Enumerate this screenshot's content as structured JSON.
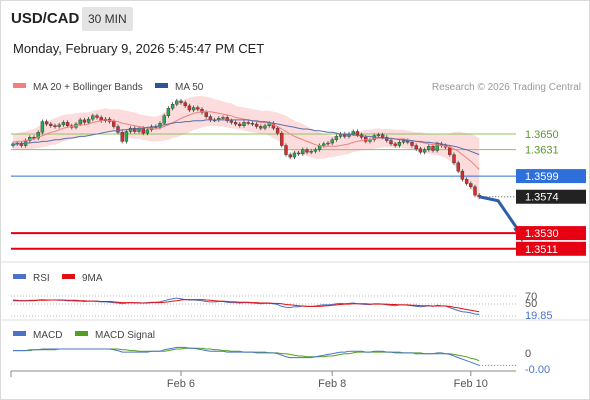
{
  "header": {
    "symbol": "USD/CAD",
    "timeframe": "30 MIN",
    "datetime": "Monday, February 9, 2026 5:45:47 PM CET"
  },
  "legend": {
    "items": [
      {
        "label": "MA 20 + Bollinger Bands",
        "color": "#f08080"
      },
      {
        "label": "MA 50",
        "color": "#2f5597"
      }
    ],
    "credit": "Research © 2026 Trading Central"
  },
  "chart_data": {
    "type": "candlestick",
    "y_range": [
      1.3495,
      1.3725
    ],
    "x_ticks": [
      {
        "label": "Feb 6",
        "index": 40
      },
      {
        "label": "Feb 8",
        "index": 76
      },
      {
        "label": "Feb 10",
        "index": 109
      }
    ],
    "close": [
      1.3638,
      1.3639,
      1.3636,
      1.3642,
      1.3646,
      1.3645,
      1.3652,
      1.3665,
      1.3662,
      1.366,
      1.3659,
      1.3661,
      1.3664,
      1.366,
      1.3658,
      1.3662,
      1.3667,
      1.3664,
      1.3668,
      1.3672,
      1.367,
      1.3666,
      1.3668,
      1.3665,
      1.3659,
      1.3652,
      1.3641,
      1.3653,
      1.3657,
      1.3653,
      1.3657,
      1.3651,
      1.3655,
      1.3659,
      1.3658,
      1.3663,
      1.3672,
      1.3681,
      1.3686,
      1.369,
      1.3688,
      1.3684,
      1.3679,
      1.3682,
      1.368,
      1.3676,
      1.3671,
      1.3667,
      1.3667,
      1.3669,
      1.367,
      1.3666,
      1.3664,
      1.3662,
      1.366,
      1.3664,
      1.3663,
      1.3662,
      1.3659,
      1.3657,
      1.366,
      1.3663,
      1.3657,
      1.3651,
      1.3636,
      1.3625,
      1.3622,
      1.3627,
      1.3626,
      1.3631,
      1.3628,
      1.3629,
      1.3631,
      1.3636,
      1.3638,
      1.3639,
      1.3643,
      1.3647,
      1.365,
      1.3647,
      1.365,
      1.3653,
      1.3649,
      1.3646,
      1.3641,
      1.3643,
      1.3648,
      1.3649,
      1.3646,
      1.3642,
      1.3638,
      1.3636,
      1.364,
      1.3642,
      1.364,
      1.3636,
      1.3632,
      1.3628,
      1.3631,
      1.3635,
      1.363,
      1.3638,
      1.3636,
      1.3634,
      1.3625,
      1.3615,
      1.3605,
      1.3595,
      1.359,
      1.3586,
      1.3576,
      1.3574
    ],
    "ma20": [
      1.364,
      1.3641,
      1.3641,
      1.3642,
      1.3643,
      1.3644,
      1.3646,
      1.3648,
      1.365,
      1.3652,
      1.3653,
      1.3655,
      1.3657,
      1.3658,
      1.3659,
      1.366,
      1.3661,
      1.3661,
      1.3662,
      1.3664,
      1.3665,
      1.3666,
      1.3667,
      1.3666,
      1.3666,
      1.3665,
      1.3663,
      1.3662,
      1.3661,
      1.366,
      1.3659,
      1.3658,
      1.3657,
      1.3656,
      1.3656,
      1.3657,
      1.3659,
      1.3661,
      1.3664,
      1.3666,
      1.3669,
      1.3671,
      1.3673,
      1.3675,
      1.3676,
      1.3677,
      1.3677,
      1.3677,
      1.3676,
      1.3675,
      1.3674,
      1.3673,
      1.3672,
      1.367,
      1.3669,
      1.3668,
      1.3667,
      1.3666,
      1.3665,
      1.3664,
      1.3664,
      1.3663,
      1.3661,
      1.3659,
      1.3656,
      1.3653,
      1.365,
      1.3647,
      1.3645,
      1.3643,
      1.3641,
      1.3639,
      1.3637,
      1.3636,
      1.3635,
      1.3635,
      1.3635,
      1.3635,
      1.3636,
      1.3637,
      1.3638,
      1.364,
      1.3641,
      1.3642,
      1.3643,
      1.3643,
      1.3644,
      1.3645,
      1.3645,
      1.3645,
      1.3645,
      1.3644,
      1.3644,
      1.3644,
      1.3643,
      1.3642,
      1.3641,
      1.364,
      1.3639,
      1.3638,
      1.3637,
      1.3637,
      1.3636,
      1.3635,
      1.3634,
      1.3632,
      1.3629,
      1.3625,
      1.3621,
      1.3617,
      1.3612,
      1.3607
    ],
    "bb_width": [
      0.001,
      0.001,
      0.0011,
      0.0011,
      0.0012,
      0.0012,
      0.0013,
      0.0014,
      0.0015,
      0.0015,
      0.0016,
      0.0016,
      0.0016,
      0.0016,
      0.0015,
      0.0015,
      0.0015,
      0.0015,
      0.0014,
      0.0014,
      0.0014,
      0.0014,
      0.0014,
      0.0014,
      0.0014,
      0.0015,
      0.0016,
      0.0016,
      0.0016,
      0.0016,
      0.0015,
      0.0015,
      0.0015,
      0.0015,
      0.0015,
      0.0016,
      0.0017,
      0.0018,
      0.0019,
      0.002,
      0.0021,
      0.0021,
      0.0021,
      0.002,
      0.002,
      0.0019,
      0.0018,
      0.0017,
      0.0016,
      0.0016,
      0.0015,
      0.0015,
      0.0015,
      0.0014,
      0.0014,
      0.0014,
      0.0014,
      0.0014,
      0.0014,
      0.0014,
      0.0014,
      0.0015,
      0.0016,
      0.0017,
      0.0018,
      0.0019,
      0.0019,
      0.0019,
      0.0019,
      0.0019,
      0.0018,
      0.0018,
      0.0017,
      0.0016,
      0.0015,
      0.0014,
      0.0013,
      0.0012,
      0.0012,
      0.0012,
      0.0012,
      0.0012,
      0.0012,
      0.0012,
      0.0012,
      0.0012,
      0.0012,
      0.0012,
      0.0011,
      0.0011,
      0.0011,
      0.0011,
      0.0011,
      0.0011,
      0.0011,
      0.0011,
      0.0011,
      0.0012,
      0.0012,
      0.0012,
      0.0012,
      0.0013,
      0.0013,
      0.0014,
      0.0017,
      0.002,
      0.0024,
      0.0027,
      0.003,
      0.0033,
      0.0036,
      0.0038
    ],
    "ma50": [
      1.3637,
      1.3638,
      1.3638,
      1.3639,
      1.3639,
      1.364,
      1.364,
      1.3641,
      1.3641,
      1.3642,
      1.3643,
      1.3643,
      1.3644,
      1.3645,
      1.3645,
      1.3646,
      1.3647,
      1.3647,
      1.3648,
      1.3649,
      1.365,
      1.3651,
      1.3652,
      1.3653,
      1.3654,
      1.3654,
      1.3655,
      1.3655,
      1.3656,
      1.3656,
      1.3657,
      1.3657,
      1.3658,
      1.3658,
      1.3659,
      1.366,
      1.3661,
      1.3662,
      1.3663,
      1.3664,
      1.3664,
      1.3665,
      1.3665,
      1.3666,
      1.3666,
      1.3666,
      1.3667,
      1.3667,
      1.3667,
      1.3667,
      1.3667,
      1.3667,
      1.3667,
      1.3667,
      1.3667,
      1.3667,
      1.3667,
      1.3666,
      1.3666,
      1.3665,
      1.3665,
      1.3664,
      1.3663,
      1.3662,
      1.3661,
      1.366,
      1.3659,
      1.3658,
      1.3657,
      1.3656,
      1.3656,
      1.3655,
      1.3654,
      1.3654,
      1.3653,
      1.3652,
      1.3652,
      1.3651,
      1.365,
      1.365,
      1.3649,
      1.3649,
      1.3648,
      1.3648,
      1.3647,
      1.3647,
      1.3646,
      1.3646,
      1.3645,
      1.3645,
      1.3644,
      1.3644,
      1.3643,
      1.3643,
      1.3642,
      1.3642,
      1.3641,
      1.3641,
      1.364,
      1.364,
      1.3639,
      1.3639,
      1.3638,
      1.3637,
      1.3636,
      1.3635,
      1.3634,
      1.3632,
      1.3631,
      1.3629,
      1.3627,
      1.3625
    ],
    "levels": [
      {
        "label": "1.3650",
        "value": 1.365,
        "kind": "resistance"
      },
      {
        "label": "1.3631",
        "value": 1.3631,
        "kind": "resistance"
      },
      {
        "label": "1.3599",
        "value": 1.3599,
        "kind": "pivot"
      },
      {
        "label": "1.3574",
        "value": 1.3574,
        "kind": "last"
      },
      {
        "label": "1.3530",
        "value": 1.353,
        "kind": "support"
      },
      {
        "label": "1.3511",
        "value": 1.3511,
        "kind": "support"
      }
    ],
    "forecast_arrow": {
      "from_index": 111,
      "from_value": 1.3574,
      "to_index": 121,
      "to_value": 1.3521
    }
  },
  "rsi": {
    "legend": [
      {
        "label": "RSI",
        "color": "#4a73c8"
      },
      {
        "label": "9MA",
        "color": "#e11"
      }
    ],
    "labels": [
      "70",
      "50",
      "19.85"
    ],
    "y_range": [
      0,
      100
    ],
    "rsi_values": [
      58,
      57,
      56,
      56,
      57,
      57,
      58,
      59,
      58,
      58,
      58,
      57,
      57,
      56,
      56,
      55,
      55,
      54,
      55,
      55,
      54,
      53,
      53,
      52,
      51,
      50,
      48,
      50,
      51,
      50,
      51,
      50,
      51,
      52,
      52,
      53,
      56,
      59,
      61,
      63,
      61,
      59,
      58,
      58,
      57,
      56,
      54,
      53,
      53,
      54,
      54,
      52,
      51,
      51,
      50,
      51,
      51,
      50,
      49,
      48,
      49,
      49,
      48,
      46,
      41,
      39,
      38,
      40,
      40,
      42,
      41,
      41,
      42,
      44,
      45,
      45,
      46,
      48,
      49,
      48,
      49,
      50,
      48,
      47,
      46,
      46,
      48,
      48,
      47,
      45,
      44,
      43,
      45,
      45,
      44,
      43,
      41,
      40,
      41,
      43,
      41,
      44,
      43,
      42,
      38,
      34,
      30,
      27,
      26,
      24,
      21,
      20
    ],
    "ma_values": [
      56,
      56,
      56,
      56,
      56,
      56,
      57,
      57,
      57,
      58,
      58,
      58,
      58,
      57,
      57,
      57,
      56,
      56,
      55,
      55,
      55,
      54,
      54,
      54,
      53,
      52,
      51,
      51,
      51,
      51,
      50,
      50,
      50,
      51,
      51,
      51,
      52,
      53,
      55,
      56,
      58,
      59,
      59,
      59,
      59,
      59,
      58,
      57,
      56,
      55,
      55,
      54,
      53,
      53,
      52,
      52,
      52,
      51,
      51,
      50,
      50,
      50,
      49,
      49,
      48,
      46,
      45,
      44,
      43,
      42,
      41,
      41,
      41,
      41,
      42,
      43,
      44,
      45,
      46,
      47,
      47,
      48,
      48,
      48,
      48,
      47,
      47,
      47,
      47,
      47,
      46,
      46,
      45,
      45,
      45,
      44,
      44,
      43,
      43,
      43,
      42,
      42,
      42,
      42,
      41,
      39,
      37,
      35,
      33,
      31,
      29,
      27
    ]
  },
  "macd": {
    "legend": [
      {
        "label": "MACD",
        "color": "#4a73c8"
      },
      {
        "label": "MACD Signal",
        "color": "#52a023"
      }
    ],
    "labels": [
      "0",
      "-0.00"
    ],
    "y_range": [
      -0.0024,
      0.0012
    ],
    "macd_values": [
      0.0001,
      0.0001,
      0.0001,
      0.0001,
      0.0002,
      0.0002,
      0.0002,
      0.0003,
      0.0003,
      0.0003,
      0.0003,
      0.0003,
      0.0003,
      0.0003,
      0.0003,
      0.0003,
      0.0003,
      0.0003,
      0.0003,
      0.0003,
      0.0003,
      0.0003,
      0.0003,
      0.0003,
      0.0002,
      0.0001,
      -0.0001,
      -0.0001,
      -0.0001,
      -0.0001,
      -0.0001,
      -0.0001,
      -0.0001,
      -0.0,
      -0.0,
      0.0,
      0.0002,
      0.0003,
      0.0004,
      0.0005,
      0.0005,
      0.0005,
      0.0004,
      0.0004,
      0.0003,
      0.0002,
      0.0001,
      0.0,
      -0.0,
      -0.0,
      -0.0,
      -0.0001,
      -0.0001,
      -0.0001,
      -0.0001,
      -0.0001,
      -0.0001,
      -0.0001,
      -0.0002,
      -0.0002,
      -0.0002,
      -0.0002,
      -0.0002,
      -0.0003,
      -0.0005,
      -0.0007,
      -0.0008,
      -0.0008,
      -0.0008,
      -0.0008,
      -0.0008,
      -0.0008,
      -0.0007,
      -0.0006,
      -0.0005,
      -0.0004,
      -0.0003,
      -0.0002,
      -0.0001,
      -0.0001,
      -0.0,
      0.0,
      0.0,
      -0.0,
      -0.0001,
      -0.0001,
      -0.0,
      -0.0,
      -0.0,
      -0.0001,
      -0.0001,
      -0.0002,
      -0.0002,
      -0.0002,
      -0.0002,
      -0.0002,
      -0.0003,
      -0.0003,
      -0.0003,
      -0.0003,
      -0.0003,
      -0.0002,
      -0.0002,
      -0.0003,
      -0.0004,
      -0.0006,
      -0.0008,
      -0.001,
      -0.0012,
      -0.0014,
      -0.0016,
      -0.0018
    ],
    "signal_values": [
      0.0001,
      0.0001,
      0.0001,
      0.0001,
      0.0001,
      0.0002,
      0.0002,
      0.0002,
      0.0002,
      0.0002,
      0.0002,
      0.0003,
      0.0003,
      0.0003,
      0.0003,
      0.0003,
      0.0003,
      0.0003,
      0.0003,
      0.0003,
      0.0003,
      0.0003,
      0.0003,
      0.0003,
      0.0003,
      0.0003,
      0.0002,
      0.0002,
      0.0001,
      0.0001,
      0.0,
      0.0,
      -0.0,
      -0.0,
      -0.0,
      -0.0,
      0.0,
      0.0001,
      0.0002,
      0.0003,
      0.0003,
      0.0004,
      0.0004,
      0.0004,
      0.0004,
      0.0004,
      0.0003,
      0.0003,
      0.0002,
      0.0002,
      0.0001,
      0.0001,
      0.0,
      -0.0,
      -0.0,
      -0.0001,
      -0.0001,
      -0.0001,
      -0.0001,
      -0.0001,
      -0.0001,
      -0.0002,
      -0.0002,
      -0.0002,
      -0.0003,
      -0.0003,
      -0.0004,
      -0.0005,
      -0.0006,
      -0.0006,
      -0.0007,
      -0.0007,
      -0.0007,
      -0.0007,
      -0.0007,
      -0.0006,
      -0.0006,
      -0.0005,
      -0.0004,
      -0.0003,
      -0.0003,
      -0.0002,
      -0.0001,
      -0.0001,
      -0.0001,
      -0.0001,
      -0.0001,
      -0.0001,
      -0.0001,
      -0.0001,
      -0.0001,
      -0.0001,
      -0.0001,
      -0.0002,
      -0.0002,
      -0.0002,
      -0.0002,
      -0.0002,
      -0.0003,
      -0.0003,
      -0.0003,
      -0.0003,
      -0.0003,
      -0.0003,
      -0.0003,
      -0.0004,
      -0.0005,
      -0.0006,
      -0.0007,
      -0.0009,
      -0.001,
      -0.0012
    ]
  }
}
